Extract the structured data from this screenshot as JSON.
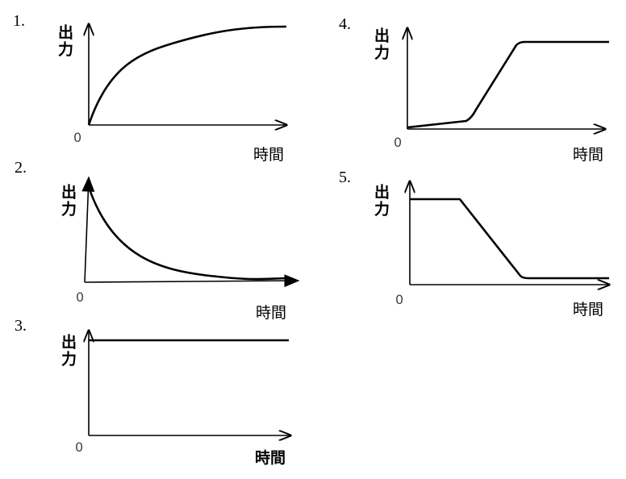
{
  "panels": [
    {
      "number": "1.",
      "y_label": "出力",
      "origin": "0",
      "x_label": "時間"
    },
    {
      "number": "2.",
      "y_label": "出力",
      "origin": "0",
      "x_label": "時間"
    },
    {
      "number": "3.",
      "y_label": "出力",
      "origin": "0",
      "x_label": "時間"
    },
    {
      "number": "4.",
      "y_label": "出力",
      "origin": "0",
      "x_label": "時間"
    },
    {
      "number": "5.",
      "y_label": "出力",
      "origin": "0",
      "x_label": "時間"
    }
  ]
}
